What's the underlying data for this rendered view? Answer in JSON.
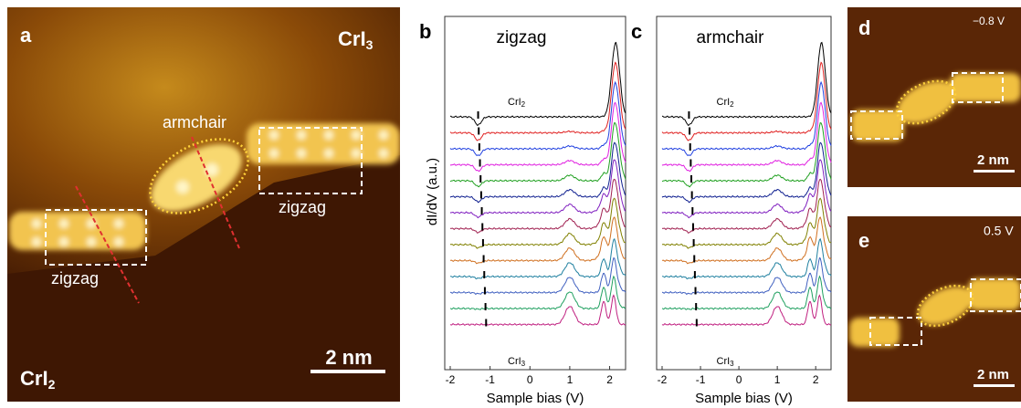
{
  "panel_a": {
    "letter": "a",
    "top_material": {
      "text": "CrI",
      "sub": "3"
    },
    "bottom_material": {
      "text": "CrI",
      "sub": "2"
    },
    "armchair_label": "armchair",
    "zigzag_right": "zigzag",
    "zigzag_left": "zigzag",
    "scale_bar": "2 nm"
  },
  "spectra": [
    {
      "letter": "b",
      "title": "zigzag",
      "top_curve": {
        "text": "CrI",
        "sub": "2"
      },
      "bottom_curve": {
        "text": "CrI",
        "sub": "3"
      },
      "y_label": "dI/dV (a.u.)",
      "x_label": "Sample bias (V)",
      "xlim": [
        -2,
        2.4
      ],
      "xticks": [
        -2,
        -1,
        0,
        1,
        2
      ]
    },
    {
      "letter": "c",
      "title": "armchair",
      "top_curve": {
        "text": "CrI",
        "sub": "2"
      },
      "bottom_curve": {
        "text": "CrI",
        "sub": "3"
      },
      "x_label": "Sample bias (V)",
      "xlim": [
        -2,
        2.4
      ],
      "xticks": [
        -2,
        -1,
        0,
        1,
        2
      ]
    }
  ],
  "panel_d": {
    "letter": "d",
    "bias": "−0.8 V",
    "scale_bar": "2 nm"
  },
  "panel_e": {
    "letter": "e",
    "bias": "0.5 V",
    "scale_bar": "2 nm"
  }
}
